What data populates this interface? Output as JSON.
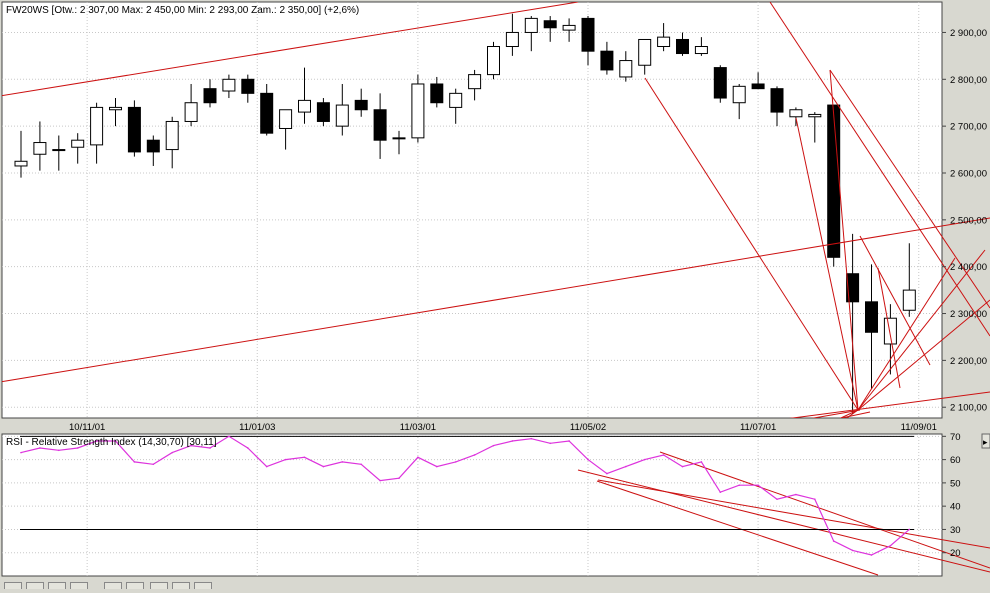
{
  "chart_data": [
    {
      "type": "candlestick",
      "title": "FW20WS [Otw.: 2 307,00   Max: 2 450,00   Min: 2 293,00   Zam.: 2 350,00] (+2,6%)",
      "y_ticks": [
        "2 900,00",
        "2 800,00",
        "2 700,00",
        "2 600,00",
        "2 500,00",
        "2 400,00",
        "2 300,00",
        "2 200,00",
        "2 100,00"
      ],
      "y_tick_values": [
        2900,
        2800,
        2700,
        2600,
        2500,
        2400,
        2300,
        2200,
        2100
      ],
      "ylim": [
        2077,
        2965
      ],
      "x_ticks": [
        "10/11/01",
        "11/01/03",
        "11/03/01",
        "11/05/02",
        "11/07/01",
        "11/09/01"
      ],
      "x_tick_index": [
        3.5,
        12.5,
        21,
        30,
        39,
        47.5
      ],
      "candles": [
        [
          2615,
          2690,
          2590,
          2625
        ],
        [
          2640,
          2710,
          2605,
          2665
        ],
        [
          2650,
          2680,
          2605,
          2650
        ],
        [
          2655,
          2685,
          2620,
          2670
        ],
        [
          2660,
          2750,
          2620,
          2740
        ],
        [
          2735,
          2760,
          2700,
          2740
        ],
        [
          2740,
          2755,
          2635,
          2645
        ],
        [
          2670,
          2680,
          2615,
          2645
        ],
        [
          2650,
          2720,
          2610,
          2710
        ],
        [
          2710,
          2790,
          2700,
          2750
        ],
        [
          2780,
          2800,
          2740,
          2750
        ],
        [
          2775,
          2810,
          2760,
          2800
        ],
        [
          2800,
          2810,
          2750,
          2770
        ],
        [
          2770,
          2790,
          2680,
          2685
        ],
        [
          2695,
          2730,
          2650,
          2735
        ],
        [
          2730,
          2825,
          2705,
          2755
        ],
        [
          2750,
          2760,
          2700,
          2710
        ],
        [
          2700,
          2790,
          2680,
          2745
        ],
        [
          2755,
          2780,
          2720,
          2735
        ],
        [
          2735,
          2770,
          2630,
          2670
        ],
        [
          2675,
          2690,
          2640,
          2675
        ],
        [
          2675,
          2810,
          2665,
          2790
        ],
        [
          2790,
          2805,
          2740,
          2750
        ],
        [
          2740,
          2780,
          2705,
          2770
        ],
        [
          2780,
          2820,
          2755,
          2810
        ],
        [
          2810,
          2880,
          2800,
          2870
        ],
        [
          2870,
          2940,
          2850,
          2900
        ],
        [
          2900,
          2935,
          2860,
          2930
        ],
        [
          2925,
          2935,
          2880,
          2910
        ],
        [
          2905,
          2930,
          2880,
          2915
        ],
        [
          2930,
          2935,
          2830,
          2860
        ],
        [
          2860,
          2880,
          2810,
          2820
        ],
        [
          2805,
          2860,
          2795,
          2840
        ],
        [
          2830,
          2880,
          2810,
          2885
        ],
        [
          2870,
          2920,
          2860,
          2890
        ],
        [
          2885,
          2900,
          2850,
          2855
        ],
        [
          2855,
          2890,
          2850,
          2870
        ],
        [
          2825,
          2830,
          2750,
          2760
        ],
        [
          2750,
          2790,
          2715,
          2785
        ],
        [
          2790,
          2815,
          2780,
          2780
        ],
        [
          2780,
          2785,
          2700,
          2730
        ],
        [
          2720,
          2740,
          2700,
          2735
        ],
        [
          2720,
          2730,
          2665,
          2725
        ],
        [
          2745,
          2745,
          2400,
          2420
        ],
        [
          2385,
          2470,
          2085,
          2325
        ],
        [
          2325,
          2405,
          2140,
          2260
        ],
        [
          2235,
          2320,
          2170,
          2290
        ],
        [
          2307,
          2450,
          2293,
          2350
        ]
      ]
    },
    {
      "type": "line",
      "title": "RSI - Relative Strength Index (14,30,70) [30,11]",
      "y_ticks": [
        "70",
        "60",
        "50",
        "40",
        "30",
        "20"
      ],
      "y_tick_values": [
        70,
        60,
        50,
        40,
        30,
        20
      ],
      "ylim": [
        10,
        71
      ],
      "x": [
        0,
        1,
        2,
        3,
        4,
        5,
        6,
        7,
        8,
        9,
        10,
        11,
        12,
        13,
        14,
        15,
        16,
        17,
        18,
        19,
        20,
        21,
        22,
        23,
        24,
        25,
        26,
        27,
        28,
        29,
        30,
        31,
        32,
        33,
        34,
        35,
        36,
        37,
        38,
        39,
        40,
        41,
        42,
        43,
        44,
        45,
        46,
        47
      ],
      "values": [
        63,
        65,
        64,
        65,
        68,
        68,
        59,
        58,
        63,
        66,
        65,
        70,
        65,
        57,
        60,
        61,
        57,
        59,
        58,
        51,
        52,
        61,
        57,
        59,
        62,
        66,
        68,
        69,
        67,
        68,
        60,
        54,
        57,
        60,
        62,
        57,
        59,
        46,
        49,
        49,
        43,
        45,
        43,
        25,
        21,
        19,
        23,
        30
      ],
      "reference_lines": [
        70,
        30
      ]
    }
  ]
}
